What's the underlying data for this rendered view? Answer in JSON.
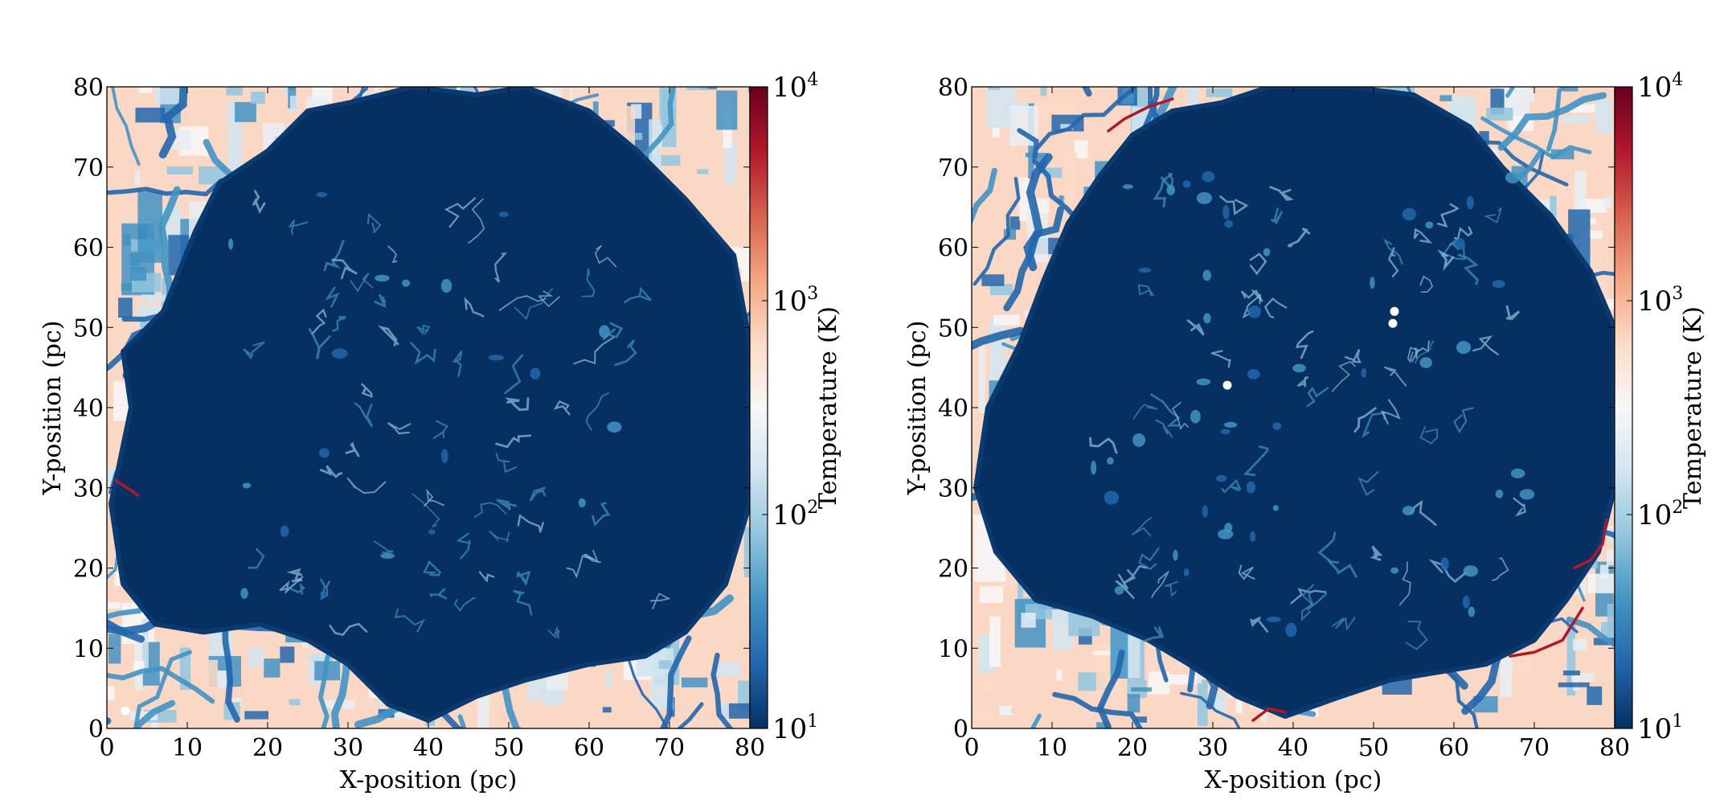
{
  "figure": {
    "colormap": [
      "#053061",
      "#2166ac",
      "#4393c3",
      "#92c5de",
      "#d1e5f0",
      "#f7f7f7",
      "#fddbc7",
      "#f4a582",
      "#d6604d",
      "#b2182b",
      "#67001f"
    ],
    "background": "#ffffff"
  },
  "chart_data": [
    {
      "type": "heatmap",
      "panel": "left",
      "xlabel": "X-position (pc)",
      "ylabel": "Y-position (pc)",
      "xlim": [
        0,
        80
      ],
      "ylim": [
        0,
        80
      ],
      "xticks": [
        0,
        10,
        20,
        30,
        40,
        50,
        60,
        70,
        80
      ],
      "yticks": [
        0,
        10,
        20,
        30,
        40,
        50,
        60,
        70,
        80
      ],
      "colorbar": {
        "label": "Temperature (K)",
        "scale": "log",
        "range": [
          10,
          10000
        ],
        "ticks": [
          {
            "base": "10",
            "exp": "1",
            "value": 10
          },
          {
            "base": "10",
            "exp": "2",
            "value": 100
          },
          {
            "base": "10",
            "exp": "3",
            "value": 1000
          },
          {
            "base": "10",
            "exp": "4",
            "value": 10000
          }
        ]
      },
      "cold_region_outline": [
        [
          2,
          18
        ],
        [
          0.5,
          28
        ],
        [
          3,
          40
        ],
        [
          2,
          47
        ],
        [
          7,
          52
        ],
        [
          11,
          62
        ],
        [
          14,
          68
        ],
        [
          20,
          72
        ],
        [
          25,
          77
        ],
        [
          30,
          78
        ],
        [
          38,
          80
        ],
        [
          46,
          79
        ],
        [
          52,
          80
        ],
        [
          60,
          77
        ],
        [
          66,
          72
        ],
        [
          72,
          66
        ],
        [
          78,
          59
        ],
        [
          80,
          48
        ],
        [
          80,
          28
        ],
        [
          77,
          18
        ],
        [
          72,
          12
        ],
        [
          67,
          9
        ],
        [
          60,
          8
        ],
        [
          52,
          6
        ],
        [
          46,
          4
        ],
        [
          40,
          1
        ],
        [
          35,
          3
        ],
        [
          30,
          8
        ],
        [
          25,
          11
        ],
        [
          19,
          13
        ],
        [
          12,
          12
        ],
        [
          6,
          13
        ]
      ],
      "markers": [
        [
          2.3,
          2.2
        ]
      ]
    },
    {
      "type": "heatmap",
      "panel": "right",
      "xlabel": "X-position (pc)",
      "ylabel": "Y-position (pc)",
      "xlim": [
        0,
        80
      ],
      "ylim": [
        0,
        80
      ],
      "xticks": [
        0,
        10,
        20,
        30,
        40,
        50,
        60,
        70,
        80
      ],
      "yticks": [
        0,
        10,
        20,
        30,
        40,
        50,
        60,
        70,
        80
      ],
      "colorbar": {
        "label": "Temperature (K)",
        "scale": "log",
        "range": [
          10,
          10000
        ],
        "ticks": [
          {
            "base": "10",
            "exp": "1",
            "value": 10
          },
          {
            "base": "10",
            "exp": "2",
            "value": 100
          },
          {
            "base": "10",
            "exp": "3",
            "value": 1000
          },
          {
            "base": "10",
            "exp": "4",
            "value": 10000
          }
        ]
      },
      "cold_region_outline": [
        [
          0.5,
          30
        ],
        [
          2,
          40
        ],
        [
          6,
          48
        ],
        [
          9,
          56
        ],
        [
          12,
          63
        ],
        [
          16,
          69
        ],
        [
          20,
          74
        ],
        [
          25,
          77
        ],
        [
          31,
          78
        ],
        [
          37,
          80
        ],
        [
          47,
          80
        ],
        [
          55,
          79
        ],
        [
          62,
          75
        ],
        [
          66,
          70
        ],
        [
          72,
          64
        ],
        [
          77,
          57
        ],
        [
          80,
          50
        ],
        [
          80,
          30
        ],
        [
          78,
          22
        ],
        [
          74,
          16
        ],
        [
          70,
          11
        ],
        [
          64,
          8
        ],
        [
          58,
          7
        ],
        [
          52,
          6
        ],
        [
          46,
          4
        ],
        [
          39,
          1.5
        ],
        [
          33,
          4
        ],
        [
          27,
          8
        ],
        [
          22,
          11
        ],
        [
          15,
          14
        ],
        [
          8,
          16
        ],
        [
          3,
          22
        ]
      ],
      "markers": [
        [
          52.6,
          52.0
        ],
        [
          52.4,
          50.5
        ],
        [
          31.8,
          42.8
        ]
      ]
    }
  ]
}
